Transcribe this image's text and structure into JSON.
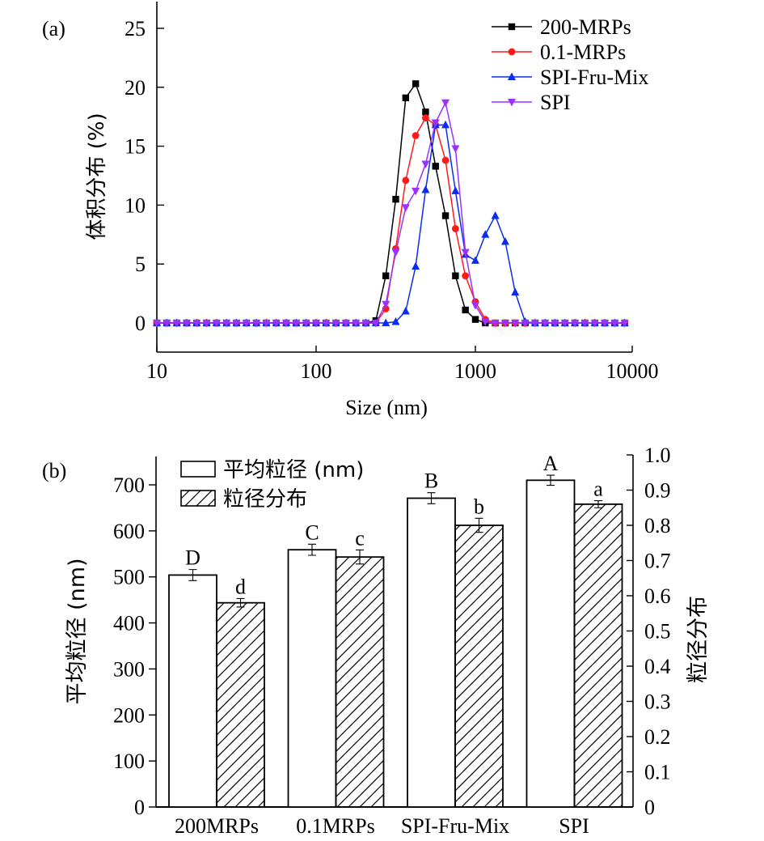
{
  "chart_data": [
    {
      "panel_label": "(a)",
      "type": "line",
      "xlabel": "Size (nm)",
      "ylabel": "体积分布 (%)",
      "xscale": "log",
      "xlim": [
        10,
        9000
      ],
      "ylim": [
        -2.5,
        27.5
      ],
      "xticks": [
        10,
        100,
        1000,
        10000
      ],
      "xtick_labels": [
        "10",
        "100",
        "1000",
        "10000"
      ],
      "yticks": [
        0,
        5,
        10,
        15,
        20,
        25
      ],
      "ytick_labels": [
        "0",
        "5",
        "10",
        "15",
        "20",
        "25"
      ],
      "grid": false,
      "legend_position": "top-right",
      "x_grid_points_per_decade": 16,
      "x_start": 10,
      "x_end_index": 47,
      "series": [
        {
          "name": "200-MRPs",
          "color": "#000000",
          "marker": "square",
          "nonzero": {
            "index_start": 22,
            "values": [
              0.2,
              4.0,
              10.5,
              19.1,
              20.3,
              17.9,
              13.3,
              9.1,
              4.0,
              1.1,
              0.3
            ]
          }
        },
        {
          "name": "0.1-MRPs",
          "color": "#ff1a1a",
          "marker": "circle",
          "nonzero": {
            "index_start": 23,
            "values": [
              1.2,
              6.3,
              12.1,
              15.9,
              17.4,
              16.8,
              13.8,
              8.0,
              4.0,
              1.8,
              0.3
            ]
          }
        },
        {
          "name": "SPI-Fru-Mix",
          "color": "#0a2cf0",
          "marker": "triangle-up",
          "nonzero": {
            "index_start": 24,
            "values": [
              0.1,
              1.0,
              4.8,
              11.3,
              16.8,
              16.8,
              11.2,
              5.8,
              5.3,
              7.5,
              9.1,
              6.9,
              2.6,
              0.1
            ]
          }
        },
        {
          "name": "SPI",
          "color": "#9b30ff",
          "marker": "triangle-down",
          "nonzero": {
            "index_start": 23,
            "values": [
              1.6,
              6.0,
              9.8,
              11.2,
              13.5,
              17.0,
              18.7,
              14.8,
              6.0,
              1.5,
              0.1
            ]
          }
        }
      ]
    },
    {
      "panel_label": "(b)",
      "type": "bar",
      "categories": [
        "200MRPs",
        "0.1MRPs",
        "SPI-Fru-Mix",
        "SPI"
      ],
      "ylabel_left": "平均粒径 (nm)",
      "ylabel_right": "粒径分布",
      "ylim_left": [
        0,
        760
      ],
      "ylim_right": [
        0,
        1.0
      ],
      "yticks_left": [
        0,
        100,
        200,
        300,
        400,
        500,
        600,
        700
      ],
      "yticks_right": [
        0,
        0.1,
        0.2,
        0.3,
        0.4,
        0.5,
        0.6,
        0.7,
        0.8,
        0.9,
        1.0
      ],
      "ytick_labels_right": [
        "0",
        "0.1",
        "0.2",
        "0.3",
        "0.4",
        "0.5",
        "0.6",
        "0.7",
        "0.8",
        "0.9",
        "1.0"
      ],
      "legend_position": "top-left",
      "series": [
        {
          "name": "平均粒径 (nm)",
          "axis": "left",
          "fill": "white",
          "values": [
            504,
            559,
            671,
            710
          ],
          "errors": [
            12,
            12,
            12,
            11
          ],
          "significance": [
            "D",
            "C",
            "B",
            "A"
          ]
        },
        {
          "name": "粒径分布",
          "axis": "right",
          "fill": "hatch",
          "values": [
            0.58,
            0.71,
            0.8,
            0.86
          ],
          "errors": [
            0.012,
            0.02,
            0.02,
            0.01
          ],
          "significance": [
            "d",
            "c",
            "b",
            "a"
          ]
        }
      ]
    }
  ]
}
